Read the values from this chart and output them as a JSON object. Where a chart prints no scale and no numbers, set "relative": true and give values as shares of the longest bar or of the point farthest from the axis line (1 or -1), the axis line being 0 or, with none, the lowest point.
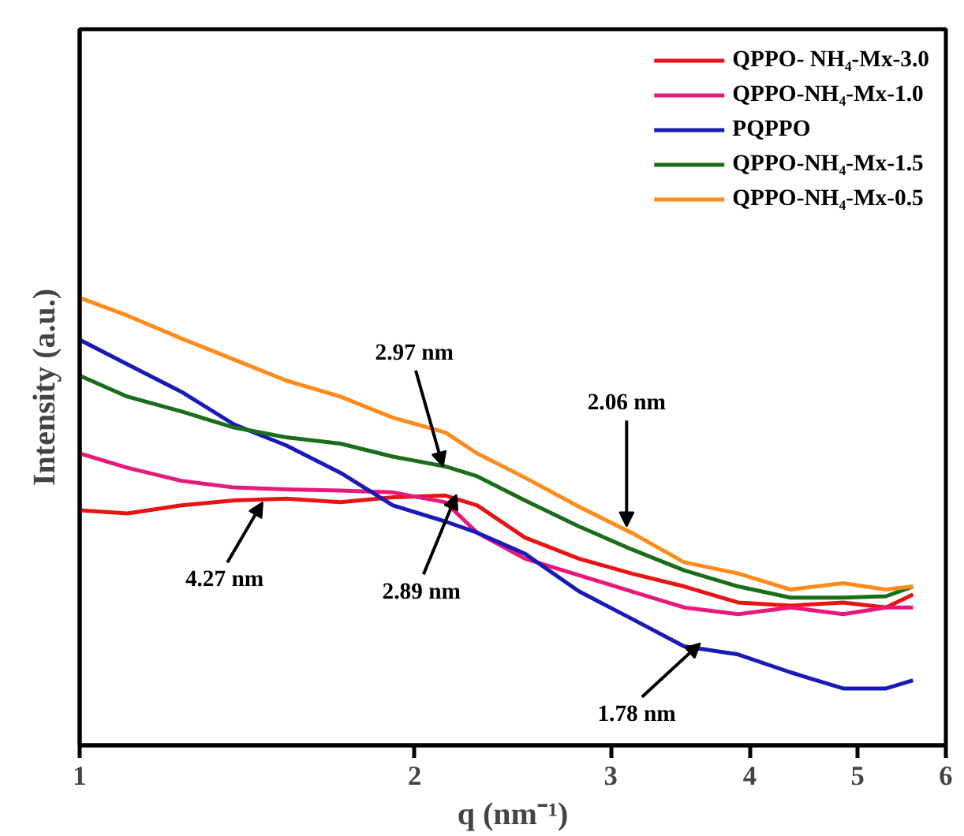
{
  "chart_data": {
    "type": "line",
    "xlabel": "q (nm⁻¹)",
    "ylabel": "Intensity (a.u.)",
    "relative": true,
    "log": "x",
    "xlim": [
      1,
      6
    ],
    "xticks": [
      1,
      2,
      3,
      4,
      5,
      6
    ],
    "grid": false,
    "legend": "top right",
    "tick_labels": "x",
    "x": [
      1.0,
      1.104,
      1.234,
      1.376,
      1.533,
      1.715,
      1.912,
      2.131,
      2.276,
      2.512,
      2.809,
      3.131,
      3.491,
      3.904,
      4.351,
      4.851,
      5.302,
      5.606
    ],
    "series": [
      {
        "name": "QPPO- NH₄-Mx-3.0",
        "color": "#e81414",
        "values": [
          0.525,
          0.518,
          0.536,
          0.547,
          0.551,
          0.543,
          0.554,
          0.558,
          0.536,
          0.464,
          0.417,
          0.384,
          0.355,
          0.319,
          0.312,
          0.319,
          0.308,
          0.337
        ]
      },
      {
        "name": "QPPO-NH₄-Mx-1.0",
        "color": "#e8197a",
        "values": [
          0.652,
          0.62,
          0.591,
          0.576,
          0.572,
          0.569,
          0.565,
          0.543,
          0.475,
          0.417,
          0.38,
          0.344,
          0.308,
          0.293,
          0.308,
          0.293,
          0.308,
          0.308
        ]
      },
      {
        "name": "PQPPO",
        "color": "#1a1ab8",
        "values": [
          0.906,
          0.851,
          0.79,
          0.717,
          0.67,
          0.609,
          0.536,
          0.5,
          0.475,
          0.428,
          0.344,
          0.283,
          0.221,
          0.203,
          0.163,
          0.127,
          0.127,
          0.145
        ]
      },
      {
        "name": "QPPO-NH₄-Mx-1.5",
        "color": "#1a6e1a",
        "values": [
          0.826,
          0.779,
          0.746,
          0.71,
          0.688,
          0.674,
          0.645,
          0.623,
          0.601,
          0.547,
          0.489,
          0.438,
          0.391,
          0.355,
          0.33,
          0.33,
          0.333,
          0.355
        ]
      },
      {
        "name": "QPPO-NH₄-Mx-0.5",
        "color": "#ff8c1a",
        "values": [
          1.0,
          0.96,
          0.909,
          0.862,
          0.815,
          0.779,
          0.732,
          0.699,
          0.652,
          0.598,
          0.533,
          0.475,
          0.409,
          0.384,
          0.348,
          0.362,
          0.348,
          0.355
        ]
      }
    ],
    "annotations": [
      {
        "text": "4.27 nm",
        "x": 1.46,
        "y": 0.543
      },
      {
        "text": "2.97 nm",
        "x": 2.12,
        "y": 0.623
      },
      {
        "text": "2.89 nm",
        "x": 2.18,
        "y": 0.56
      },
      {
        "text": "2.06 nm",
        "x": 3.1,
        "y": 0.489
      },
      {
        "text": "1.78 nm",
        "x": 3.61,
        "y": 0.228
      }
    ]
  }
}
